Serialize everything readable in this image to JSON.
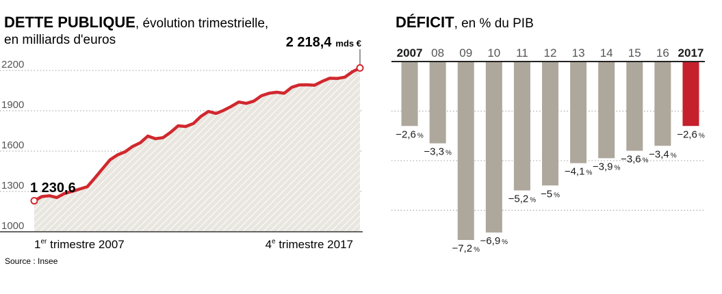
{
  "colors": {
    "debt_line": "#d0282e",
    "debt_fill": "#e9e6e0",
    "hatch": "#ffffff",
    "bar": "#aea79c",
    "bar_highlight": "#c5202c",
    "grid": "#9a9a9a",
    "text": "#1a1a1a",
    "muted": "#555555"
  },
  "debt_panel": {
    "title_bold": "DETTE PUBLIQUE",
    "title_rest": ", évolution trimestrielle,",
    "subtitle": "en milliards d'euros",
    "start_value_label": "1 230,6",
    "end_value_label": "2 218,4",
    "end_value_unit": "mds €",
    "x_start_ord": "1",
    "x_start_sup": "er",
    "x_start_rest": " trimestre 2007",
    "x_end_ord": "4",
    "x_end_sup": "e",
    "x_end_rest": " trimestre 2017",
    "source": "Source : Insee"
  },
  "deficit_panel": {
    "title_bold": "DÉFICIT",
    "title_rest": ", en % du PIB",
    "percent_sign": "%"
  },
  "chart_data": [
    {
      "type": "area",
      "title": "DETTE PUBLIQUE, évolution trimestrielle, en milliards d'euros",
      "ylim": [
        1000,
        2300
      ],
      "y_ticks": [
        1000,
        1300,
        1600,
        1900,
        2200
      ],
      "y_tick_labels": [
        "1000",
        "1300",
        "1600",
        "1900",
        "2200"
      ],
      "x_labels": [
        "1er trimestre 2007",
        "4e trimestre 2017"
      ],
      "grid": true,
      "series": [
        {
          "values": [
            1230.6,
            1262,
            1268,
            1255,
            1285,
            1300,
            1318,
            1335,
            1400,
            1468,
            1535,
            1572,
            1595,
            1635,
            1662,
            1712,
            1692,
            1700,
            1740,
            1788,
            1783,
            1805,
            1858,
            1895,
            1880,
            1903,
            1932,
            1965,
            1955,
            1972,
            2012,
            2030,
            2038,
            2030,
            2075,
            2092,
            2093,
            2090,
            2118,
            2142,
            2140,
            2150,
            2190,
            2218.4
          ]
        }
      ]
    },
    {
      "type": "bar",
      "title": "DÉFICIT, en % du PIB",
      "categories": [
        "2007",
        "08",
        "09",
        "10",
        "11",
        "12",
        "13",
        "14",
        "15",
        "16",
        "2017"
      ],
      "values": [
        -2.6,
        -3.3,
        -7.2,
        -6.9,
        -5.2,
        -5,
        -4.1,
        -3.9,
        -3.6,
        -3.4,
        -2.6
      ],
      "value_labels": [
        "−2,6",
        "−3,3",
        "−7,2",
        "−6,9",
        "−5,2",
        "−5",
        "−4,1",
        "−3,9",
        "−3,6",
        "−3,4",
        "−2,6"
      ],
      "highlight": [
        "2017"
      ],
      "bold_categories": [
        "2007",
        "2017"
      ],
      "ylim": [
        -8,
        0
      ],
      "grid": true
    }
  ]
}
